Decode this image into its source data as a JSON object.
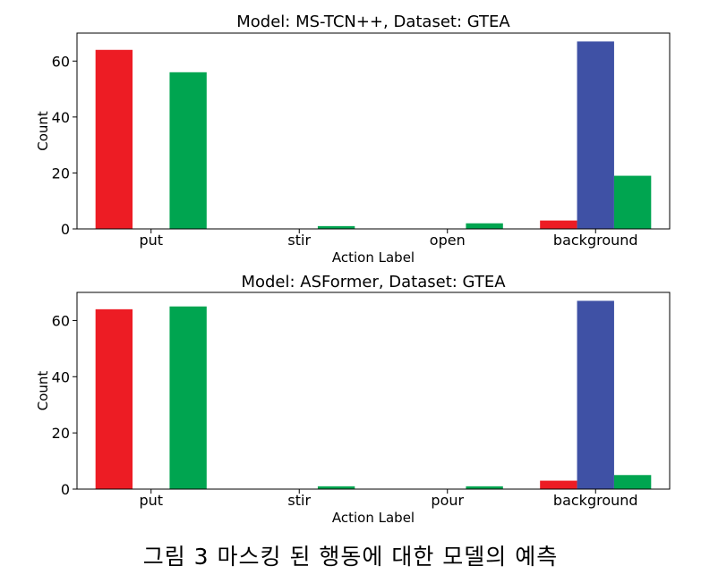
{
  "chart_data": [
    {
      "type": "bar",
      "title": "Model: MS-TCN++, Dataset: GTEA",
      "xlabel": "Action Label",
      "ylabel": "Count",
      "categories": [
        "put",
        "stir",
        "open",
        "background"
      ],
      "ylim": [
        0,
        70
      ],
      "yticks": [
        0,
        20,
        40,
        60
      ],
      "grid": false,
      "series": [
        {
          "color": "#ed1c24",
          "values": [
            64,
            0,
            0,
            3
          ]
        },
        {
          "color": "#3f51a5",
          "values": [
            0,
            0,
            0,
            67
          ]
        },
        {
          "color": "#00a550",
          "values": [
            56,
            1,
            2,
            19
          ]
        }
      ]
    },
    {
      "type": "bar",
      "title": "Model: ASFormer, Dataset: GTEA",
      "xlabel": "Action Label",
      "ylabel": "Count",
      "categories": [
        "put",
        "stir",
        "pour",
        "background"
      ],
      "ylim": [
        0,
        70
      ],
      "yticks": [
        0,
        20,
        40,
        60
      ],
      "grid": false,
      "series": [
        {
          "color": "#ed1c24",
          "values": [
            64,
            0,
            0,
            3
          ]
        },
        {
          "color": "#3f51a5",
          "values": [
            0,
            0,
            0,
            67
          ]
        },
        {
          "color": "#00a550",
          "values": [
            65,
            1,
            1,
            5
          ]
        }
      ]
    }
  ],
  "caption": "그림 3 마스킹 된 행동에 대한 모델의 예측"
}
